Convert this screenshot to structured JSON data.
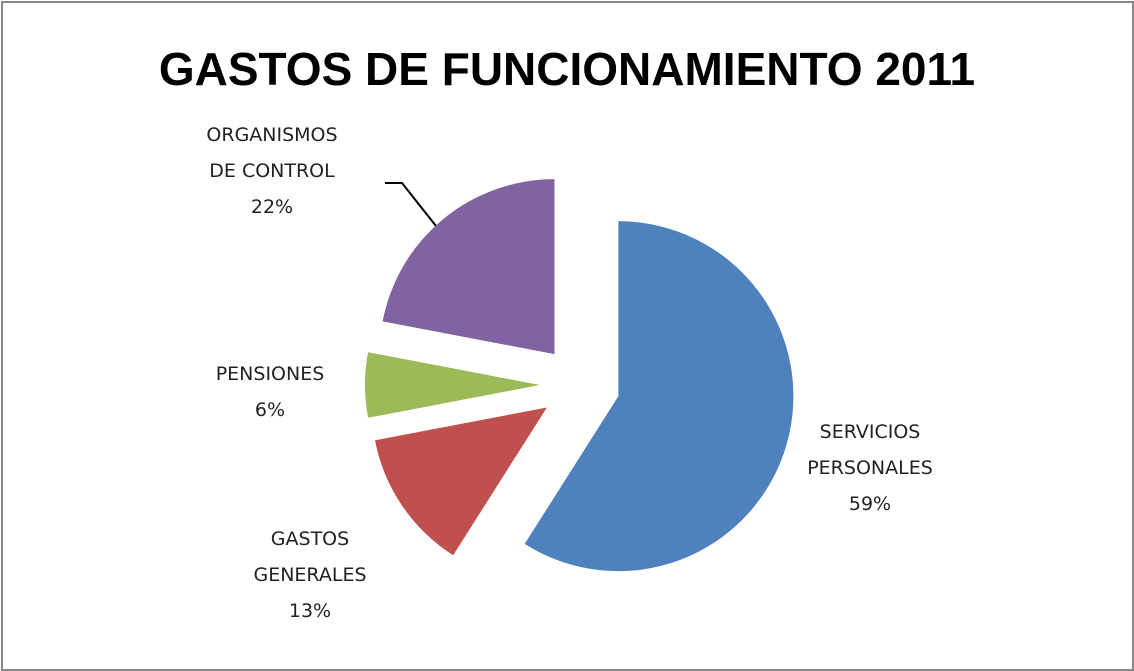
{
  "chart_data": {
    "type": "pie",
    "title": "GASTOS DE FUNCIONAMIENTO 2011",
    "categories": [
      "SERVICIOS PERSONALES",
      "GASTOS GENERALES",
      "PENSIONES",
      "ORGANISMOS DE CONTROL"
    ],
    "values": [
      59,
      13,
      6,
      22
    ],
    "value_labels": [
      "59%",
      "13%",
      "6%",
      "22%"
    ],
    "colors": [
      "#4f81bd",
      "#c0504d",
      "#9bbb59",
      "#8064a2"
    ]
  }
}
